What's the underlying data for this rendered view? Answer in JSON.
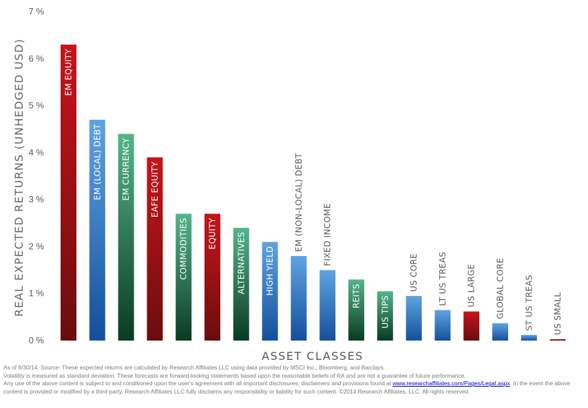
{
  "colors": {
    "red_top": "#c8141b",
    "red_bottom": "#6a0d0d",
    "blue_top": "#5fa4e1",
    "blue_bottom": "#154f9c",
    "green_top": "#55b48c",
    "green_bottom": "#0a3a22",
    "label_light": "#ffffff",
    "label_dark": "#5a5a5a"
  },
  "chart_data": {
    "type": "bar",
    "ylabel": "REAL EXPECTED RETURNS (UNHEDGED USD)",
    "xlabel": "ASSET CLASSES",
    "ylim": [
      0,
      7
    ],
    "y_ticks": [
      "0 %",
      "1 %",
      "2 %",
      "3 %",
      "4 %",
      "5 %",
      "6 %",
      "7 %"
    ],
    "grid": false,
    "categories": [
      "EM EQUITY",
      "EM (LOCAL) DEBT",
      "EM CURRENCY",
      "EAFE EQUITY",
      "COMMODITIES",
      "EQUITY",
      "ALTERNATIVES",
      "HIGH YIELD",
      "EM (NON-LOCAL) DEBT",
      "FIXED INCOME",
      "REITS",
      "US TIPS",
      "US CORE",
      "LT US TREAS",
      "US LARGE",
      "GLOBAL CORE",
      "ST US TREAS",
      "US SMALL"
    ],
    "values": [
      6.3,
      4.7,
      4.4,
      3.9,
      2.7,
      2.7,
      2.4,
      2.1,
      1.8,
      1.5,
      1.3,
      1.05,
      0.95,
      0.65,
      0.62,
      0.37,
      0.12,
      0.03
    ],
    "bar_colors": [
      "red",
      "blue",
      "green",
      "red",
      "green",
      "red",
      "green",
      "blue",
      "blue",
      "blue",
      "green",
      "green",
      "blue",
      "blue",
      "red",
      "blue",
      "blue",
      "red"
    ]
  },
  "footnote": {
    "line1": "As of 9/30/14. Source: These expected returns are calculated by Research Affiliates LLC using data provided by MSCI Inc., Bloomberg, and Barclays.",
    "line2": "Volatility is measured as standard deviation. These forecasts are forward-looking statements based upon the reasonable beliefs of RA and are not a guarantee of future performance.",
    "line3_before": "Any use of the above content is subject to and conditioned upon the user's agreement with all important disclosures, disclaimers and provisions found at ",
    "link": "www.researchaffiliates.com/Pages/Legal.aspx",
    "line3_after": ". In the event the above content is provided or modified by a third-party, Research Affiliates LLC fully disclaims any responsibility or liability for such content.  ©2014 Research Affiliates, LLC.  All rights reserved."
  }
}
